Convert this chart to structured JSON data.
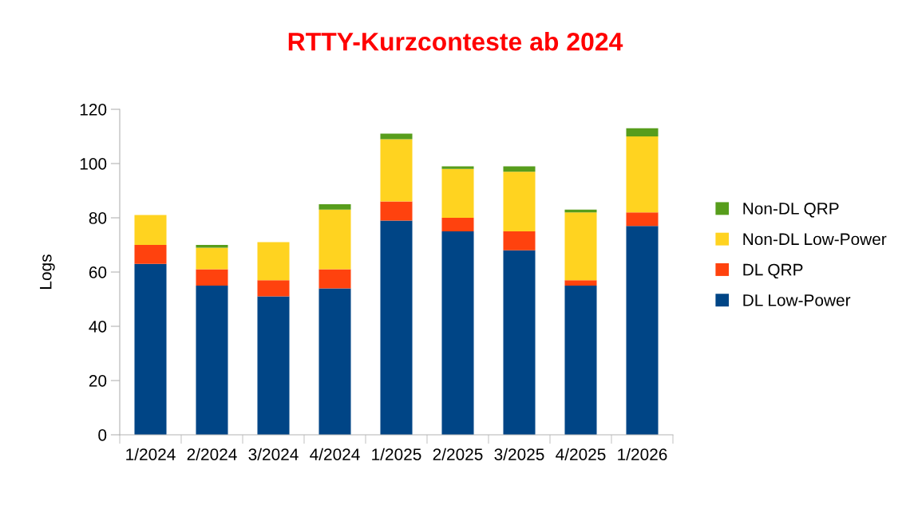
{
  "chart_data": {
    "type": "bar",
    "title": "RTTY-Kurzconteste ab 2024",
    "ylabel": "Logs",
    "categories": [
      "1/2024",
      "2/2024",
      "3/2024",
      "4/2024",
      "1/2025",
      "2/2025",
      "3/2025",
      "4/2025",
      "1/2026"
    ],
    "stacked": true,
    "series": [
      {
        "name": "DL Low-Power",
        "color": "#004586",
        "values": [
          63,
          55,
          51,
          54,
          79,
          75,
          68,
          55,
          77
        ]
      },
      {
        "name": "DL QRP",
        "color": "#ff420e",
        "values": [
          7,
          6,
          6,
          7,
          7,
          5,
          7,
          2,
          5
        ]
      },
      {
        "name": "Non-DL Low-Power",
        "color": "#ffd320",
        "values": [
          11,
          8,
          14,
          22,
          23,
          18,
          22,
          25,
          28
        ]
      },
      {
        "name": "Non-DL QRP",
        "color": "#579d1c",
        "values": [
          0,
          1,
          0,
          2,
          2,
          1,
          2,
          1,
          3
        ]
      }
    ],
    "ylim": [
      0,
      120
    ],
    "yticks": [
      0,
      20,
      40,
      60,
      80,
      100,
      120
    ],
    "grid": false,
    "legend": "right"
  }
}
